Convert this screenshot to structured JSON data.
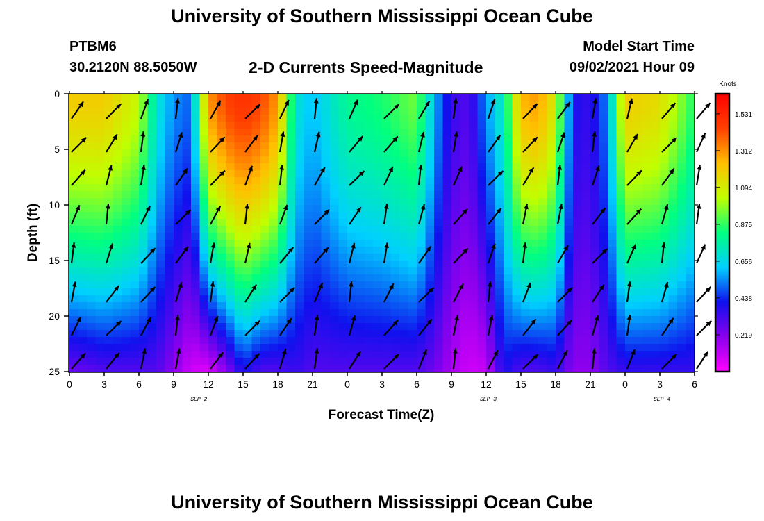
{
  "header": {
    "title": "University of Southern Mississippi Ocean Cube",
    "station_id": "PTBM6",
    "coords": "30.2120N  88.5050W",
    "plot_title": "2-D Currents Speed-Magnitude",
    "start_label": "Model Start Time",
    "start_value": "09/02/2021 Hour 09"
  },
  "footer": {
    "title": "University of Southern Mississippi Ocean Cube"
  },
  "chart_data": {
    "type": "heatmap",
    "xlabel": "Forecast Time(Z)",
    "ylabel": "Depth (ft)",
    "x_range_hours": [
      0,
      54
    ],
    "y_range": [
      0,
      25
    ],
    "y_inverted": true,
    "x_tick_labels": [
      "0",
      "3",
      "6",
      "9",
      "12",
      "15",
      "18",
      "21",
      "0",
      "3",
      "6",
      "9",
      "12",
      "15",
      "18",
      "21",
      "0",
      "3",
      "6"
    ],
    "y_ticks": [
      0,
      5,
      10,
      15,
      20,
      25
    ],
    "date_labels": [
      {
        "text": "SEP 2",
        "hour": 11
      },
      {
        "text": "SEP 3",
        "hour": 36
      },
      {
        "text": "SEP 4",
        "hour": 51
      }
    ],
    "colorbar": {
      "unit": "Knots",
      "range": [
        0,
        1.65
      ],
      "tick_values": [
        0.219,
        0.438,
        0.656,
        0.875,
        1.094,
        1.312,
        1.531
      ],
      "tick_labels": [
        "0.219",
        "0.438",
        "0.656",
        "0.875",
        "1.094",
        "1.312",
        "1.531"
      ],
      "colors": [
        "#ff00ff",
        "#8a00ee",
        "#1010ee",
        "#00d0ff",
        "#00ff80",
        "#c0ff00",
        "#ffc000",
        "#ff4000",
        "#ff0000"
      ]
    },
    "columns": [
      {
        "hour": 0,
        "top": 1.2,
        "bottom": 0.25
      },
      {
        "hour": 3,
        "top": 1.2,
        "bottom": 0.3
      },
      {
        "hour": 6,
        "top": 1.05,
        "bottom": 0.3
      },
      {
        "hour": 7.5,
        "top": 0.7,
        "bottom": 0.3
      },
      {
        "hour": 9,
        "top": 0.55,
        "bottom": 0.2
      },
      {
        "hour": 10.5,
        "top": 0.5,
        "bottom": 0.08
      },
      {
        "hour": 12,
        "top": 1.3,
        "bottom": 0.05
      },
      {
        "hour": 13.5,
        "top": 1.45,
        "bottom": 0.2
      },
      {
        "hour": 15,
        "top": 1.5,
        "bottom": 0.4
      },
      {
        "hour": 16.5,
        "top": 1.45,
        "bottom": 0.3
      },
      {
        "hour": 18,
        "top": 1.3,
        "bottom": 0.3
      },
      {
        "hour": 19.5,
        "top": 0.7,
        "bottom": 0.35
      },
      {
        "hour": 21,
        "top": 0.6,
        "bottom": 0.3
      },
      {
        "hour": 22.5,
        "top": 0.7,
        "bottom": 0.3
      },
      {
        "hour": 24,
        "top": 0.8,
        "bottom": 0.3
      },
      {
        "hour": 27,
        "top": 0.85,
        "bottom": 0.3
      },
      {
        "hour": 30,
        "top": 0.95,
        "bottom": 0.3
      },
      {
        "hour": 31.5,
        "top": 0.6,
        "bottom": 0.25
      },
      {
        "hour": 33,
        "top": 0.35,
        "bottom": 0.15
      },
      {
        "hour": 34.5,
        "top": 0.3,
        "bottom": 0.08
      },
      {
        "hour": 36,
        "top": 0.55,
        "bottom": 0.1
      },
      {
        "hour": 37.5,
        "top": 0.75,
        "bottom": 0.4
      },
      {
        "hour": 39,
        "top": 1.25,
        "bottom": 0.3
      },
      {
        "hour": 40.5,
        "top": 1.3,
        "bottom": 0.3
      },
      {
        "hour": 42,
        "top": 1.1,
        "bottom": 0.35
      },
      {
        "hour": 43.5,
        "top": 0.4,
        "bottom": 0.2
      },
      {
        "hour": 45,
        "top": 0.35,
        "bottom": 0.2
      },
      {
        "hour": 46.5,
        "top": 0.55,
        "bottom": 0.3
      },
      {
        "hour": 48,
        "top": 1.2,
        "bottom": 0.35
      },
      {
        "hour": 51,
        "top": 1.15,
        "bottom": 0.35
      },
      {
        "hour": 54,
        "top": 0.85,
        "bottom": 0.35
      }
    ]
  }
}
